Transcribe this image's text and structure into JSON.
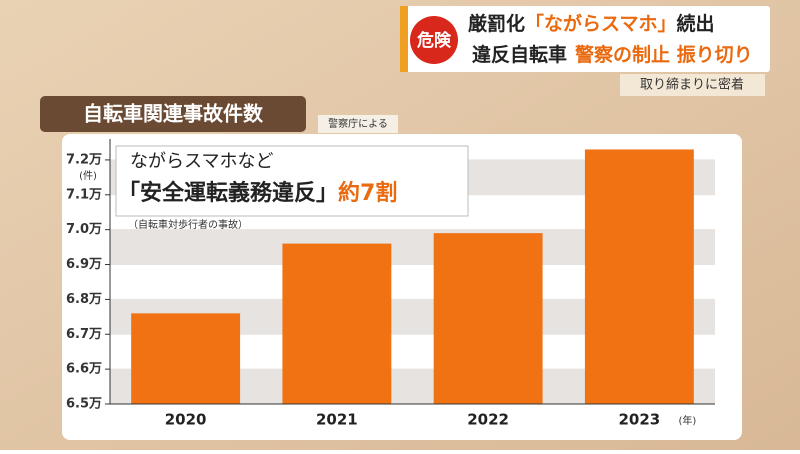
{
  "header": {
    "badge": "危険",
    "headline1": [
      "厳罰化",
      "「ながらスマホ」",
      "続出"
    ],
    "headline2": [
      "違反自転車",
      "警察の制止 振り切り"
    ],
    "tag": "取り締まりに密着"
  },
  "chart_data": {
    "type": "bar",
    "title": "自転車関連事故件数",
    "source": "警察庁による",
    "annotation": {
      "line1": "ながらスマホなど",
      "line2": [
        "「安全運転義務違反」",
        "約7割"
      ],
      "note": "（自転車対歩行者の事故）"
    },
    "y_unit": "(件)",
    "x_unit": "(年)",
    "categories": [
      "2020",
      "2021",
      "2022",
      "2023"
    ],
    "values": [
      6.76,
      6.96,
      6.99,
      7.23
    ],
    "color": "#f07212",
    "ylim": [
      6.5,
      7.26
    ],
    "yticks": [
      {
        "value": 6.5,
        "label": "6.5万"
      },
      {
        "value": 6.6,
        "label": "6.6万"
      },
      {
        "value": 6.7,
        "label": "6.7万"
      },
      {
        "value": 6.8,
        "label": "6.8万"
      },
      {
        "value": 6.9,
        "label": "6.9万"
      },
      {
        "value": 7.0,
        "label": "7.0万"
      },
      {
        "value": 7.1,
        "label": "7.1万"
      },
      {
        "value": 7.2,
        "label": "7.2万"
      }
    ],
    "grid": true
  }
}
